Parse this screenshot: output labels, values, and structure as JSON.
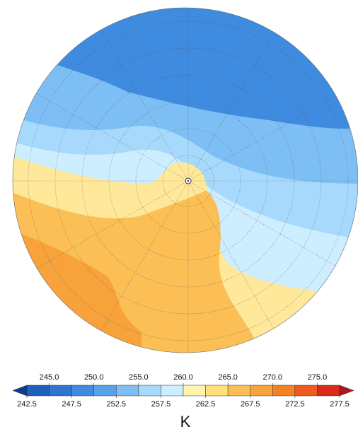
{
  "colorbar": {
    "unit": "K",
    "top_labels": [
      {
        "value": 245,
        "label": "245.0"
      },
      {
        "value": 250,
        "label": "250.0"
      },
      {
        "value": 255,
        "label": "255.0"
      },
      {
        "value": 260,
        "label": "260.0"
      },
      {
        "value": 265,
        "label": "265.0"
      },
      {
        "value": 270,
        "label": "270.0"
      },
      {
        "value": 275,
        "label": "275.0"
      }
    ],
    "bottom_labels": [
      242.5,
      247.5,
      252.5,
      257.5,
      262.5,
      267.5,
      272.5,
      277.5
    ],
    "colors": [
      "#0a3d91",
      "#1f5fbf",
      "#2e74d1",
      "#3f8be0",
      "#56a3ec",
      "#7dbff5",
      "#a6d9fb",
      "#cdeeff",
      "#fff3b0",
      "#ffe07a",
      "#fbbf55",
      "#f7a23a",
      "#f58220",
      "#ef5a1f",
      "#d92b1b",
      "#b0141c"
    ]
  }
}
